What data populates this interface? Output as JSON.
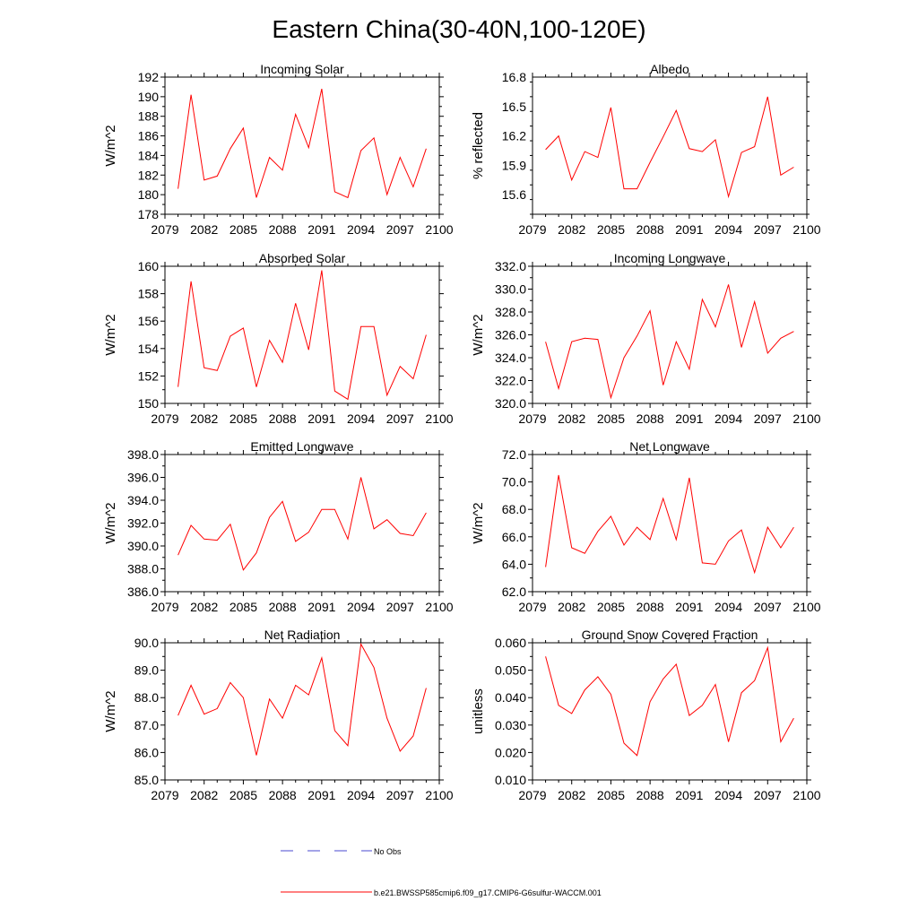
{
  "title": "Eastern China(30-40N,100-120E)",
  "legend": {
    "entries": [
      {
        "label": "No Obs",
        "color": "#4a4ad0",
        "style": "dashed"
      },
      {
        "label": "b.e21.BWSSP585cmip6.f09_g17.CMIP6-G6sulfur-WACCM.001",
        "color": "#ff0000",
        "style": "solid"
      }
    ]
  },
  "chart_data": [
    {
      "type": "line",
      "title": "Incoming Solar",
      "ylabel": "W/m^2",
      "xlim": [
        2079,
        2100
      ],
      "ylim": [
        178,
        192
      ],
      "x_ticks": [
        2079,
        2082,
        2085,
        2088,
        2091,
        2094,
        2097,
        2100
      ],
      "y_ticks": [
        178,
        180,
        182,
        184,
        186,
        188,
        190,
        192
      ],
      "y_tick_labels": [
        "178",
        "180",
        "182",
        "184",
        "186",
        "188",
        "190",
        "192"
      ],
      "x": [
        2080,
        2081,
        2082,
        2083,
        2084,
        2085,
        2086,
        2087,
        2088,
        2089,
        2090,
        2091,
        2092,
        2093,
        2094,
        2095,
        2096,
        2097,
        2098,
        2099
      ],
      "series": [
        {
          "values": [
            180.6,
            190.2,
            181.5,
            181.9,
            184.7,
            186.8,
            179.7,
            183.8,
            182.5,
            188.2,
            184.8,
            190.8,
            180.3,
            179.7,
            184.5,
            185.8,
            180.0,
            183.8,
            180.8,
            184.7
          ],
          "color": "#ff0000"
        }
      ]
    },
    {
      "type": "line",
      "title": "Albedo",
      "ylabel": "% reflected",
      "xlim": [
        2079,
        2100
      ],
      "ylim": [
        15.4,
        16.8
      ],
      "x_ticks": [
        2079,
        2082,
        2085,
        2088,
        2091,
        2094,
        2097,
        2100
      ],
      "y_ticks": [
        15.6,
        15.9,
        16.2,
        16.5,
        16.8
      ],
      "y_tick_labels": [
        "15.6",
        "15.9",
        "16.2",
        "16.5",
        "16.8"
      ],
      "x": [
        2080,
        2081,
        2082,
        2083,
        2084,
        2085,
        2086,
        2087,
        2088,
        2089,
        2090,
        2091,
        2092,
        2093,
        2094,
        2095,
        2096,
        2097,
        2098,
        2099
      ],
      "series": [
        {
          "values": [
            16.06,
            16.2,
            15.75,
            16.04,
            15.98,
            16.49,
            15.66,
            15.66,
            15.93,
            16.19,
            16.46,
            16.07,
            16.04,
            16.16,
            15.58,
            16.03,
            16.09,
            16.6,
            15.8,
            15.88
          ],
          "color": "#ff0000"
        }
      ]
    },
    {
      "type": "line",
      "title": "Absorbed Solar",
      "ylabel": "W/m^2",
      "xlim": [
        2079,
        2100
      ],
      "ylim": [
        150,
        160
      ],
      "x_ticks": [
        2079,
        2082,
        2085,
        2088,
        2091,
        2094,
        2097,
        2100
      ],
      "y_ticks": [
        150,
        152,
        154,
        156,
        158,
        160
      ],
      "y_tick_labels": [
        "150",
        "152",
        "154",
        "156",
        "158",
        "160"
      ],
      "x": [
        2080,
        2081,
        2082,
        2083,
        2084,
        2085,
        2086,
        2087,
        2088,
        2089,
        2090,
        2091,
        2092,
        2093,
        2094,
        2095,
        2096,
        2097,
        2098,
        2099
      ],
      "series": [
        {
          "values": [
            151.2,
            158.9,
            152.6,
            152.4,
            154.9,
            155.5,
            151.2,
            154.6,
            153.0,
            157.3,
            153.9,
            159.7,
            150.9,
            150.3,
            155.6,
            155.6,
            150.6,
            152.7,
            151.8,
            155.0
          ],
          "color": "#ff0000"
        }
      ]
    },
    {
      "type": "line",
      "title": "Incoming Longwave",
      "ylabel": "W/m^2",
      "xlim": [
        2079,
        2100
      ],
      "ylim": [
        320,
        332
      ],
      "x_ticks": [
        2079,
        2082,
        2085,
        2088,
        2091,
        2094,
        2097,
        2100
      ],
      "y_ticks": [
        320,
        322,
        324,
        326,
        328,
        330,
        332
      ],
      "y_tick_labels": [
        "320.0",
        "322.0",
        "324.0",
        "326.0",
        "328.0",
        "330.0",
        "332.0"
      ],
      "x": [
        2080,
        2081,
        2082,
        2083,
        2084,
        2085,
        2086,
        2087,
        2088,
        2089,
        2090,
        2091,
        2092,
        2093,
        2094,
        2095,
        2096,
        2097,
        2098,
        2099
      ],
      "series": [
        {
          "values": [
            325.4,
            321.3,
            325.4,
            325.7,
            325.6,
            320.5,
            324.0,
            325.9,
            328.1,
            321.6,
            325.4,
            323.0,
            329.1,
            326.7,
            330.4,
            324.9,
            328.9,
            324.4,
            325.7,
            326.3
          ],
          "color": "#ff0000"
        }
      ]
    },
    {
      "type": "line",
      "title": "Emitted Longwave",
      "ylabel": "W/m^2",
      "xlim": [
        2079,
        2100
      ],
      "ylim": [
        386,
        398
      ],
      "x_ticks": [
        2079,
        2082,
        2085,
        2088,
        2091,
        2094,
        2097,
        2100
      ],
      "y_ticks": [
        386,
        388,
        390,
        392,
        394,
        396,
        398
      ],
      "y_tick_labels": [
        "386.0",
        "388.0",
        "390.0",
        "392.0",
        "394.0",
        "396.0",
        "398.0"
      ],
      "x": [
        2080,
        2081,
        2082,
        2083,
        2084,
        2085,
        2086,
        2087,
        2088,
        2089,
        2090,
        2091,
        2092,
        2093,
        2094,
        2095,
        2096,
        2097,
        2098,
        2099
      ],
      "series": [
        {
          "values": [
            389.2,
            391.8,
            390.6,
            390.5,
            391.9,
            387.9,
            389.4,
            392.5,
            393.9,
            390.4,
            391.2,
            393.2,
            393.2,
            390.6,
            396.0,
            391.5,
            392.3,
            391.1,
            390.9,
            392.9
          ],
          "color": "#ff0000"
        }
      ]
    },
    {
      "type": "line",
      "title": "Net Longwave",
      "ylabel": "W/m^2",
      "xlim": [
        2079,
        2100
      ],
      "ylim": [
        62,
        72
      ],
      "x_ticks": [
        2079,
        2082,
        2085,
        2088,
        2091,
        2094,
        2097,
        2100
      ],
      "y_ticks": [
        62,
        64,
        66,
        68,
        70,
        72
      ],
      "y_tick_labels": [
        "62.0",
        "64.0",
        "66.0",
        "68.0",
        "70.0",
        "72.0"
      ],
      "x": [
        2080,
        2081,
        2082,
        2083,
        2084,
        2085,
        2086,
        2087,
        2088,
        2089,
        2090,
        2091,
        2092,
        2093,
        2094,
        2095,
        2096,
        2097,
        2098,
        2099
      ],
      "series": [
        {
          "values": [
            63.8,
            70.5,
            65.2,
            64.8,
            66.4,
            67.5,
            65.4,
            66.7,
            65.8,
            68.8,
            65.8,
            70.3,
            64.1,
            64.0,
            65.7,
            66.5,
            63.4,
            66.7,
            65.2,
            66.7
          ],
          "color": "#ff0000"
        }
      ]
    },
    {
      "type": "line",
      "title": "Net Radiation",
      "ylabel": "W/m^2",
      "xlim": [
        2079,
        2100
      ],
      "ylim": [
        85,
        90
      ],
      "x_ticks": [
        2079,
        2082,
        2085,
        2088,
        2091,
        2094,
        2097,
        2100
      ],
      "y_ticks": [
        85,
        86,
        87,
        88,
        89,
        90
      ],
      "y_tick_labels": [
        "85.0",
        "86.0",
        "87.0",
        "88.0",
        "89.0",
        "90.0"
      ],
      "x": [
        2080,
        2081,
        2082,
        2083,
        2084,
        2085,
        2086,
        2087,
        2088,
        2089,
        2090,
        2091,
        2092,
        2093,
        2094,
        2095,
        2096,
        2097,
        2098,
        2099
      ],
      "series": [
        {
          "values": [
            87.35,
            88.45,
            87.4,
            87.6,
            88.55,
            88.0,
            85.9,
            87.95,
            87.25,
            88.45,
            88.1,
            89.45,
            86.8,
            86.25,
            89.95,
            89.1,
            87.25,
            86.05,
            86.6,
            88.35
          ],
          "color": "#ff0000"
        }
      ]
    },
    {
      "type": "line",
      "title": "Ground Snow Covered Fraction",
      "ylabel": "unitless",
      "xlim": [
        2079,
        2100
      ],
      "ylim": [
        0.01,
        0.06
      ],
      "x_ticks": [
        2079,
        2082,
        2085,
        2088,
        2091,
        2094,
        2097,
        2100
      ],
      "y_ticks": [
        0.01,
        0.02,
        0.03,
        0.04,
        0.05,
        0.06
      ],
      "y_tick_labels": [
        "0.010",
        "0.020",
        "0.030",
        "0.040",
        "0.050",
        "0.060"
      ],
      "x": [
        2080,
        2081,
        2082,
        2083,
        2084,
        2085,
        2086,
        2087,
        2088,
        2089,
        2090,
        2091,
        2092,
        2093,
        2094,
        2095,
        2096,
        2097,
        2098,
        2099
      ],
      "series": [
        {
          "values": [
            0.055,
            0.0372,
            0.0342,
            0.0428,
            0.0476,
            0.0412,
            0.0234,
            0.0189,
            0.0385,
            0.0468,
            0.0522,
            0.0335,
            0.0372,
            0.0448,
            0.0239,
            0.0418,
            0.0462,
            0.0582,
            0.0239,
            0.0325
          ],
          "color": "#ff0000"
        }
      ]
    }
  ]
}
